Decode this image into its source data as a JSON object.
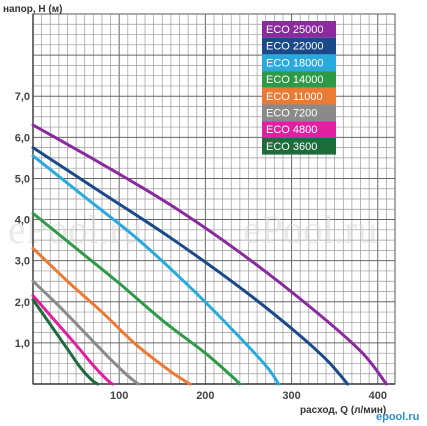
{
  "chart_data": {
    "type": "line",
    "ylabel": "напор, Н (м)",
    "xlabel": "расход, Q (л/мин)",
    "xlim": [
      0,
      420
    ],
    "ylim": [
      0,
      9
    ],
    "x_ticks": [
      "100",
      "200",
      "300",
      "400"
    ],
    "y_ticks": [
      "1,0",
      "2,0",
      "3,0",
      "4,0",
      "5,0",
      "6,0",
      "7,0"
    ],
    "grid": true,
    "legend_position": "top-right",
    "series": [
      {
        "name": "ECO 25000",
        "color": "#8b2a9e",
        "x": [
          0,
          80,
          160,
          240,
          320,
          380,
          410
        ],
        "y": [
          6.3,
          5.35,
          4.35,
          3.2,
          1.9,
          0.8,
          0
        ]
      },
      {
        "name": "ECO 22000",
        "color": "#1a4a8a",
        "x": [
          0,
          80,
          160,
          240,
          300,
          340,
          365
        ],
        "y": [
          5.75,
          4.65,
          3.55,
          2.35,
          1.35,
          0.6,
          0
        ]
      },
      {
        "name": "ECO 18000",
        "color": "#29a9dc",
        "x": [
          0,
          60,
          120,
          180,
          230,
          270,
          285
        ],
        "y": [
          5.55,
          4.55,
          3.55,
          2.4,
          1.35,
          0.45,
          0
        ]
      },
      {
        "name": "ECO 14000",
        "color": "#2e9a48",
        "x": [
          0,
          50,
          100,
          150,
          200,
          230,
          240
        ],
        "y": [
          4.15,
          3.3,
          2.45,
          1.55,
          0.75,
          0.2,
          0
        ]
      },
      {
        "name": "ECO 11000",
        "color": "#ea7a34",
        "x": [
          0,
          40,
          80,
          120,
          160,
          182
        ],
        "y": [
          3.3,
          2.5,
          1.75,
          0.95,
          0.3,
          0
        ]
      },
      {
        "name": "ECO 7200",
        "color": "#8a8a8a",
        "x": [
          0,
          30,
          60,
          90,
          110,
          122
        ],
        "y": [
          2.5,
          1.9,
          1.25,
          0.6,
          0.2,
          0
        ]
      },
      {
        "name": "ECO 4800",
        "color": "#e020a0",
        "x": [
          0,
          25,
          50,
          70,
          85,
          92
        ],
        "y": [
          2.15,
          1.55,
          0.95,
          0.45,
          0.12,
          0
        ]
      },
      {
        "name": "ECO 3600",
        "color": "#1e6b3c",
        "x": [
          0,
          20,
          40,
          55,
          68,
          75
        ],
        "y": [
          2.05,
          1.45,
          0.85,
          0.4,
          0.1,
          0
        ]
      }
    ]
  },
  "watermark": {
    "left": "ePool.ru",
    "right": "ePool.ru"
  },
  "brand_logo": "epool.ru"
}
